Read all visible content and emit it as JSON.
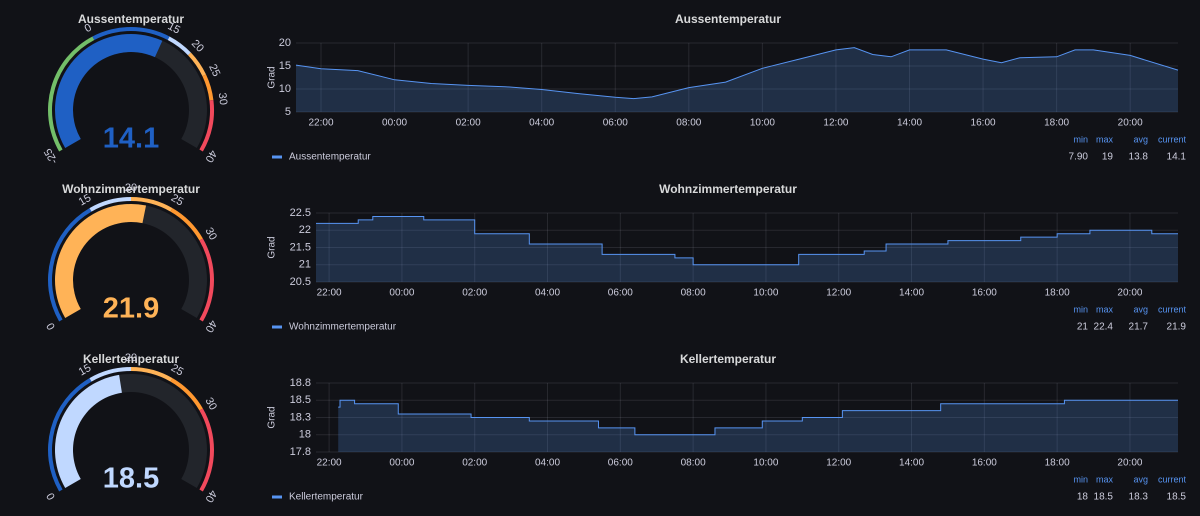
{
  "chart_data": [
    {
      "type": "gauge",
      "title": "Aussentemperatur",
      "value": 14.1,
      "ylim": [
        -25,
        40
      ],
      "yticks": [
        -25,
        0,
        15,
        20,
        25,
        30,
        40
      ],
      "thresholds": [
        {
          "value": -25,
          "color": "#73BF69"
        },
        {
          "value": 0,
          "color": "#1F60C4"
        },
        {
          "value": 15,
          "color": "#C0D8FF"
        },
        {
          "value": 20,
          "color": "#FFB357"
        },
        {
          "value": 25,
          "color": "#FF9830"
        },
        {
          "value": 30,
          "color": "#F2495C"
        }
      ]
    },
    {
      "type": "area",
      "title": "Aussentemperatur",
      "y_label": "Grad",
      "step": false,
      "grid": true,
      "x": [
        21.32,
        22,
        23,
        24,
        25,
        26,
        27,
        28,
        29,
        30,
        30.5,
        31,
        32,
        33,
        34,
        35,
        35.5,
        36,
        36.5,
        37,
        37.5,
        38,
        39,
        40,
        40.5,
        41,
        42,
        42.5,
        43,
        44,
        45.3
      ],
      "series": [
        {
          "name": "Aussentemperatur",
          "color": "#5794F2",
          "values": [
            15.2,
            14.4,
            14,
            12,
            11.2,
            10.8,
            10.5,
            9.9,
            9,
            8.2,
            7.9,
            8.3,
            10.3,
            11.5,
            14.5,
            16.5,
            17.5,
            18.5,
            19,
            17.5,
            17,
            18.5,
            18.5,
            16.5,
            15.7,
            16.8,
            17,
            18.5,
            18.5,
            17.3,
            14.1
          ]
        }
      ],
      "xlim": [
        21.32,
        45.3
      ],
      "xticks": [
        {
          "value": 22,
          "label": "22:00"
        },
        {
          "value": 24,
          "label": "00:00"
        },
        {
          "value": 26,
          "label": "02:00"
        },
        {
          "value": 28,
          "label": "04:00"
        },
        {
          "value": 30,
          "label": "06:00"
        },
        {
          "value": 32,
          "label": "08:00"
        },
        {
          "value": 34,
          "label": "10:00"
        },
        {
          "value": 36,
          "label": "12:00"
        },
        {
          "value": 38,
          "label": "14:00"
        },
        {
          "value": 40,
          "label": "16:00"
        },
        {
          "value": 42,
          "label": "18:00"
        },
        {
          "value": 44,
          "label": "20:00"
        }
      ],
      "ylim": [
        5,
        20
      ],
      "yticks": [
        5,
        10,
        15,
        20
      ],
      "legend": {
        "columns": [
          "min",
          "max",
          "avg",
          "current"
        ],
        "values": [
          {
            "value": 7.9,
            "label": "7.90"
          },
          19,
          13.8,
          14.1
        ]
      }
    },
    {
      "type": "gauge",
      "title": "Wohnzimmertemperatur",
      "value": 21.9,
      "ylim": [
        0,
        40
      ],
      "yticks": [
        0,
        15,
        20,
        25,
        30,
        40
      ],
      "thresholds": [
        {
          "value": 0,
          "color": "#1F60C4"
        },
        {
          "value": 15,
          "color": "#C0D8FF"
        },
        {
          "value": 20,
          "color": "#FFB357"
        },
        {
          "value": 25,
          "color": "#FF9830"
        },
        {
          "value": 30,
          "color": "#F2495C"
        }
      ]
    },
    {
      "type": "area",
      "title": "Wohnzimmertemperatur",
      "y_label": "Grad",
      "step": true,
      "grid": true,
      "x": [
        21.64,
        22.8,
        23.2,
        24.6,
        26,
        27.5,
        29.5,
        31.5,
        32,
        34.9,
        36.7,
        37.3,
        39,
        41,
        42,
        42.9,
        44.6,
        45.32
      ],
      "series": [
        {
          "name": "Wohnzimmertemperatur",
          "color": "#5794F2",
          "values": [
            22.2,
            22.3,
            22.4,
            22.3,
            21.9,
            21.6,
            21.3,
            21.2,
            21,
            21.3,
            21.4,
            21.6,
            21.7,
            21.8,
            21.9,
            22,
            21.9,
            21.9
          ]
        }
      ],
      "xlim": [
        21.64,
        45.32
      ],
      "xticks": [
        {
          "value": 22,
          "label": "22:00"
        },
        {
          "value": 24,
          "label": "00:00"
        },
        {
          "value": 26,
          "label": "02:00"
        },
        {
          "value": 28,
          "label": "04:00"
        },
        {
          "value": 30,
          "label": "06:00"
        },
        {
          "value": 32,
          "label": "08:00"
        },
        {
          "value": 34,
          "label": "10:00"
        },
        {
          "value": 36,
          "label": "12:00"
        },
        {
          "value": 38,
          "label": "14:00"
        },
        {
          "value": 40,
          "label": "16:00"
        },
        {
          "value": 42,
          "label": "18:00"
        },
        {
          "value": 44,
          "label": "20:00"
        }
      ],
      "ylim": [
        20.5,
        22.5
      ],
      "yticks": [
        20.5,
        21,
        21.5,
        22,
        22.5
      ],
      "legend": {
        "columns": [
          "min",
          "max",
          "avg",
          "current"
        ],
        "values": [
          21,
          22.4,
          21.7,
          21.9
        ]
      }
    },
    {
      "type": "gauge",
      "title": "Kellertemperatur",
      "value": 18.5,
      "ylim": [
        0,
        40
      ],
      "yticks": [
        0,
        15,
        20,
        25,
        30,
        40
      ],
      "thresholds": [
        {
          "value": 0,
          "color": "#1F60C4"
        },
        {
          "value": 15,
          "color": "#C0D8FF"
        },
        {
          "value": 20,
          "color": "#FFB357"
        },
        {
          "value": 25,
          "color": "#FF9830"
        },
        {
          "value": 30,
          "color": "#F2495C"
        }
      ]
    },
    {
      "type": "area",
      "title": "Kellertemperatur",
      "y_label": "Grad",
      "step": true,
      "grid": true,
      "x": [
        22.25,
        22.3,
        22.7,
        23.9,
        25.9,
        27.5,
        29.4,
        30.4,
        32.6,
        33.9,
        35,
        36.1,
        37.3,
        38.8,
        42.2,
        45.32
      ],
      "series": [
        {
          "name": "Kellertemperatur",
          "color": "#5794F2",
          "values": [
            18.4,
            18.5,
            18.45,
            18.3,
            18.25,
            18.2,
            18.1,
            18,
            18.1,
            18.2,
            18.25,
            18.35,
            18.35,
            18.45,
            18.5,
            18.5
          ]
        }
      ],
      "xlim": [
        21.64,
        45.32
      ],
      "xticks": [
        {
          "value": 22,
          "label": "22:00"
        },
        {
          "value": 24,
          "label": "00:00"
        },
        {
          "value": 26,
          "label": "02:00"
        },
        {
          "value": 28,
          "label": "04:00"
        },
        {
          "value": 30,
          "label": "06:00"
        },
        {
          "value": 32,
          "label": "08:00"
        },
        {
          "value": 34,
          "label": "10:00"
        },
        {
          "value": 36,
          "label": "12:00"
        },
        {
          "value": 38,
          "label": "14:00"
        },
        {
          "value": 40,
          "label": "16:00"
        },
        {
          "value": 42,
          "label": "18:00"
        },
        {
          "value": 44,
          "label": "20:00"
        }
      ],
      "ylim": [
        17.75,
        18.75
      ],
      "yticks": [
        {
          "value": 17.75,
          "label": "17.8"
        },
        18,
        {
          "value": 18.25,
          "label": "18.3"
        },
        18.5,
        {
          "value": 18.75,
          "label": "18.8"
        }
      ],
      "legend": {
        "columns": [
          "min",
          "max",
          "avg",
          "current"
        ],
        "values": [
          18,
          18.5,
          18.3,
          18.5
        ]
      }
    }
  ]
}
